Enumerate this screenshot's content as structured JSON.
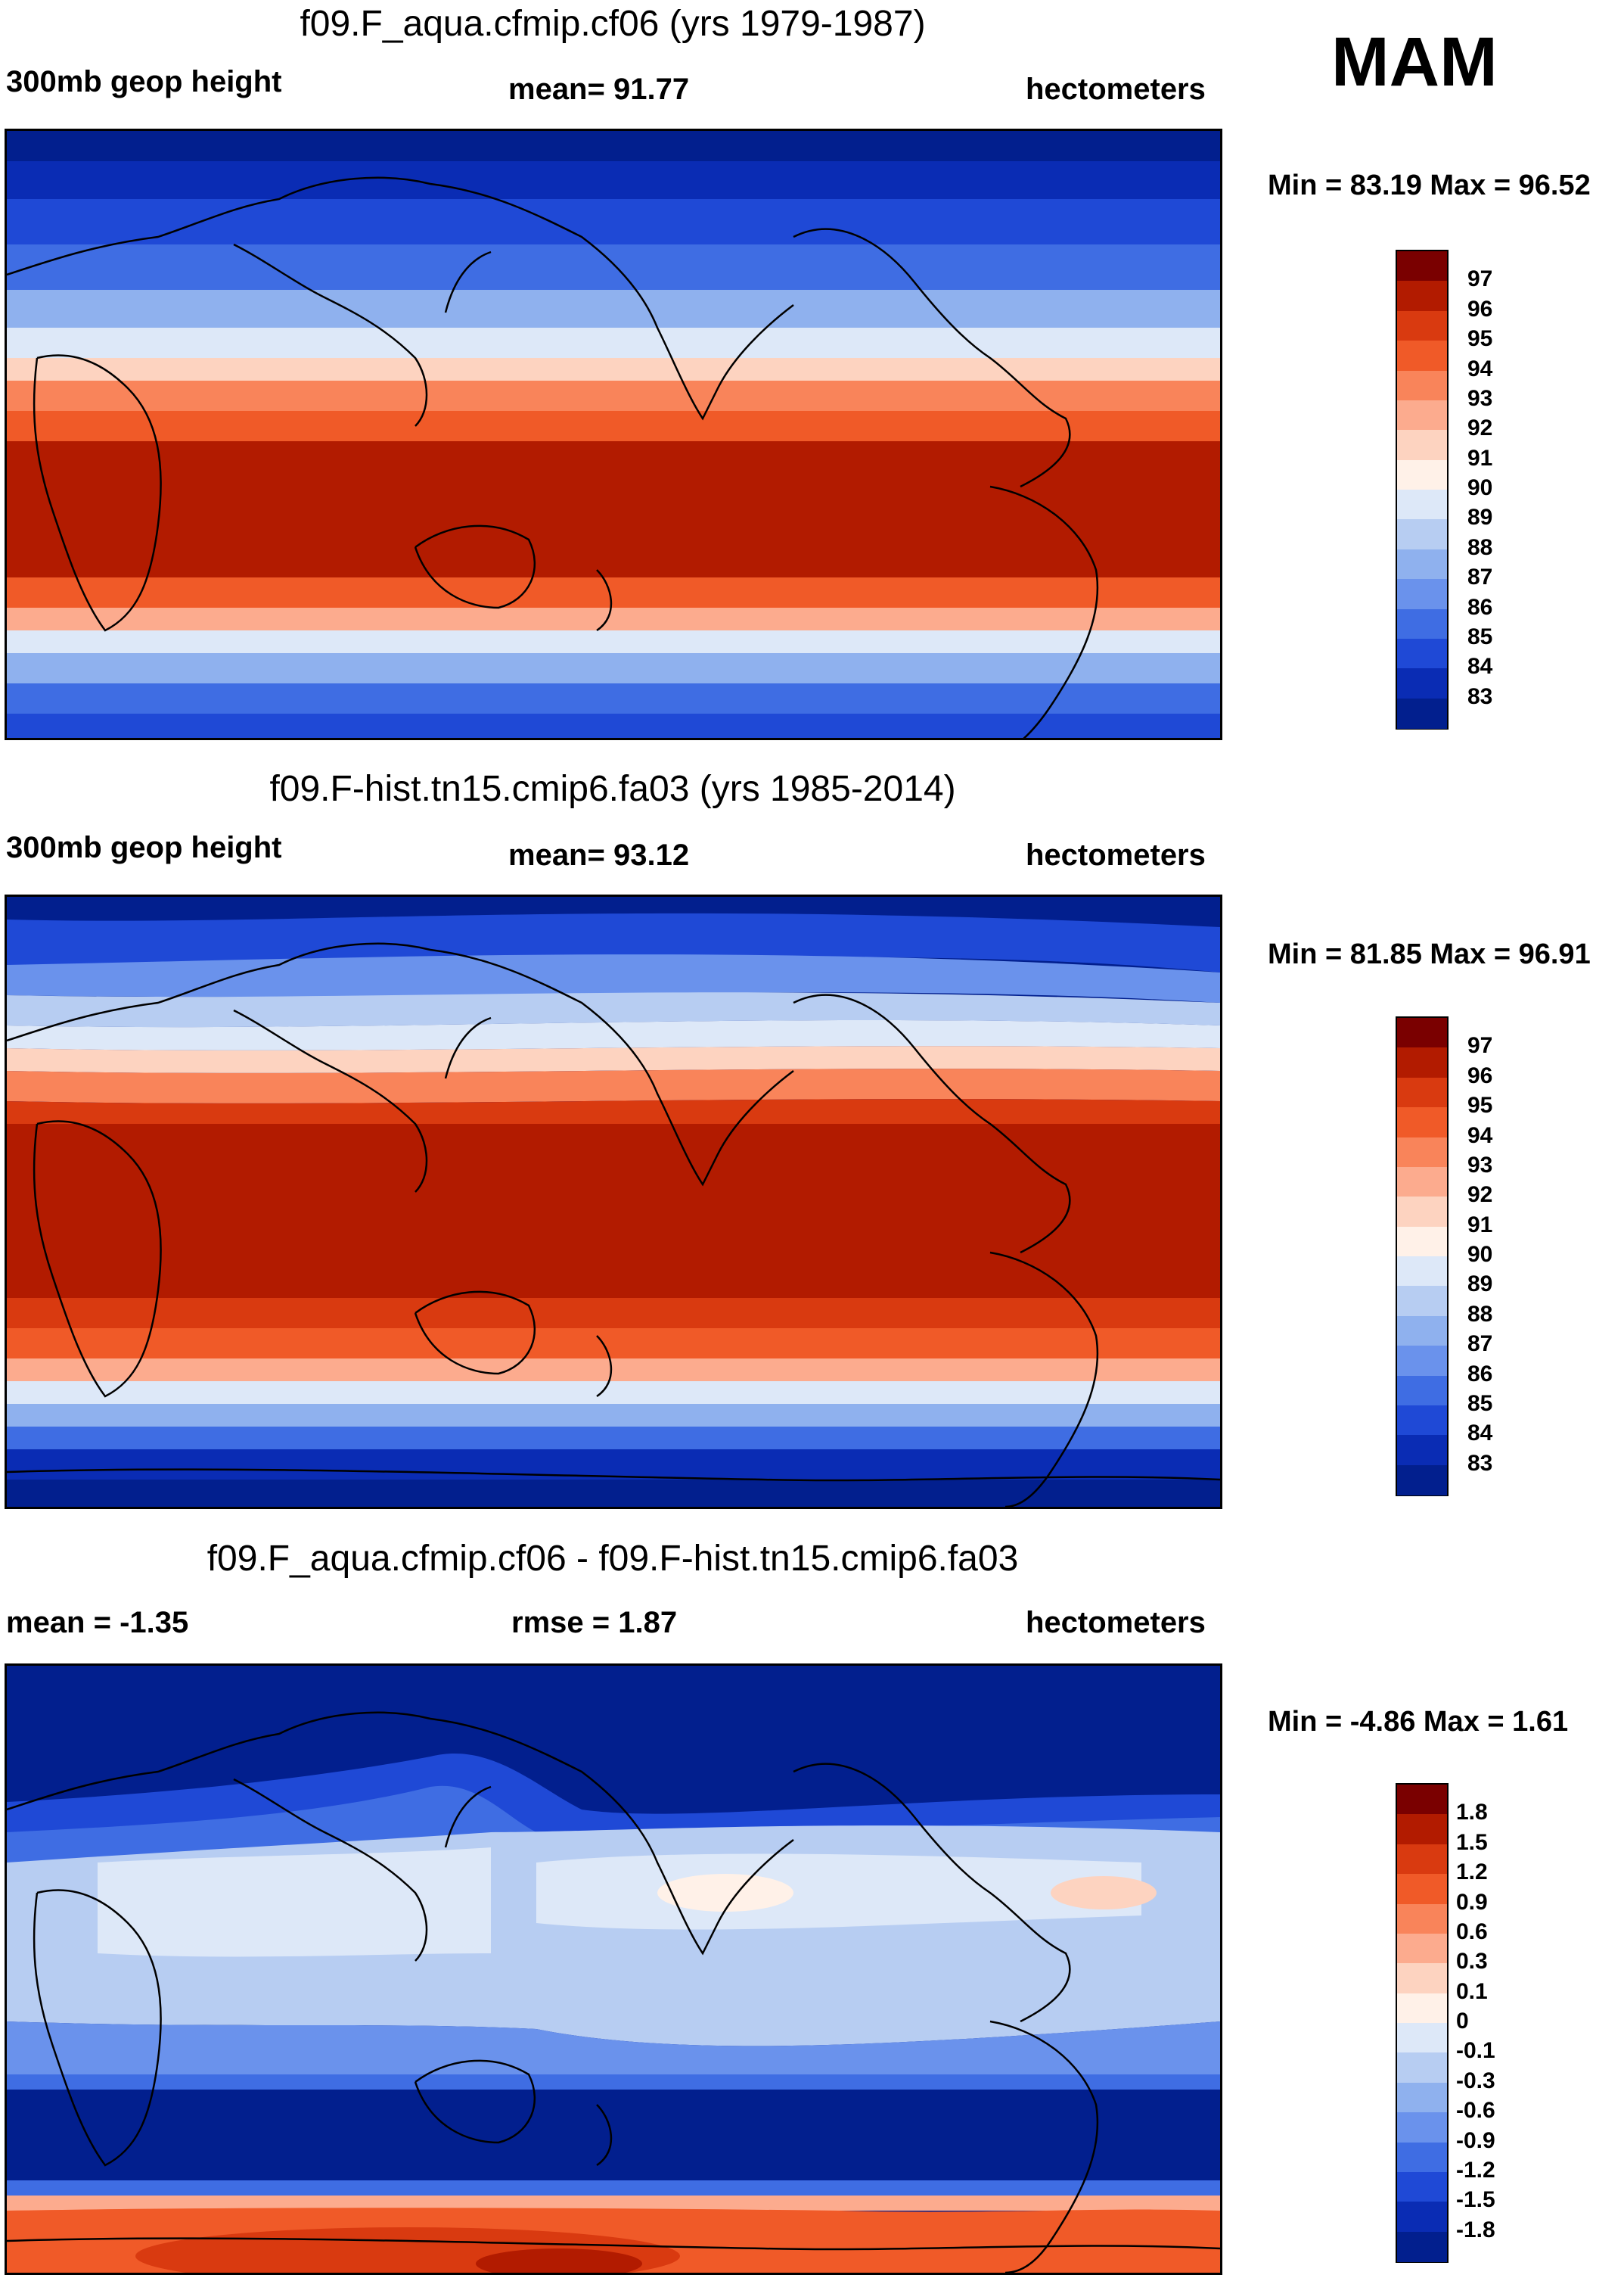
{
  "season": "MAM",
  "panels": [
    {
      "title": "f09.F_aqua.cfmip.cf06 (yrs 1979-1987)",
      "left_label": "300mb geop height",
      "center_label": "mean=  91.77",
      "right_label": "hectometers",
      "minmax": "Min =  83.19 Max =  96.52",
      "colorbar": {
        "labels": [
          "97",
          "96",
          "95",
          "94",
          "93",
          "92",
          "91",
          "90",
          "89",
          "88",
          "87",
          "86",
          "85",
          "84",
          "83"
        ],
        "colors": [
          "#7a0000",
          "#b21b00",
          "#d93a10",
          "#f05a28",
          "#f9845a",
          "#fcab8e",
          "#fdd3c0",
          "#fff1e8",
          "#dde8f8",
          "#b7cdf2",
          "#8fb1ee",
          "#6a92ec",
          "#3f6de3",
          "#1f49d6",
          "#0a2cb4",
          "#021f8e"
        ]
      }
    },
    {
      "title": "f09.F-hist.tn15.cmip6.fa03 (yrs 1985-2014)",
      "left_label": "300mb geop height",
      "center_label": "mean=  93.12",
      "right_label": "hectometers",
      "minmax": "Min =  81.85 Max =  96.91",
      "colorbar": {
        "labels": [
          "97",
          "96",
          "95",
          "94",
          "93",
          "92",
          "91",
          "90",
          "89",
          "88",
          "87",
          "86",
          "85",
          "84",
          "83"
        ],
        "colors": [
          "#7a0000",
          "#b21b00",
          "#d93a10",
          "#f05a28",
          "#f9845a",
          "#fcab8e",
          "#fdd3c0",
          "#fff1e8",
          "#dde8f8",
          "#b7cdf2",
          "#8fb1ee",
          "#6a92ec",
          "#3f6de3",
          "#1f49d6",
          "#0a2cb4",
          "#021f8e"
        ]
      }
    },
    {
      "title": "f09.F_aqua.cfmip.cf06 - f09.F-hist.tn15.cmip6.fa03",
      "left_label": "mean =  -1.35",
      "center_label": "rmse =   1.87",
      "right_label": "hectometers",
      "minmax": "Min =  -4.86 Max =   1.61",
      "colorbar": {
        "labels": [
          "1.8",
          "1.5",
          "1.2",
          "0.9",
          "0.6",
          "0.3",
          "0.1",
          "0",
          "-0.1",
          "-0.3",
          "-0.6",
          "-0.9",
          "-1.2",
          "-1.5",
          "-1.8"
        ],
        "colors": [
          "#7a0000",
          "#b21b00",
          "#d93a10",
          "#f05a28",
          "#f9845a",
          "#fcab8e",
          "#fdd3c0",
          "#fff1e8",
          "#dde8f8",
          "#b7cdf2",
          "#8fb1ee",
          "#6a92ec",
          "#3f6de3",
          "#1f49d6",
          "#0a2cb4",
          "#021f8e"
        ]
      }
    }
  ]
}
